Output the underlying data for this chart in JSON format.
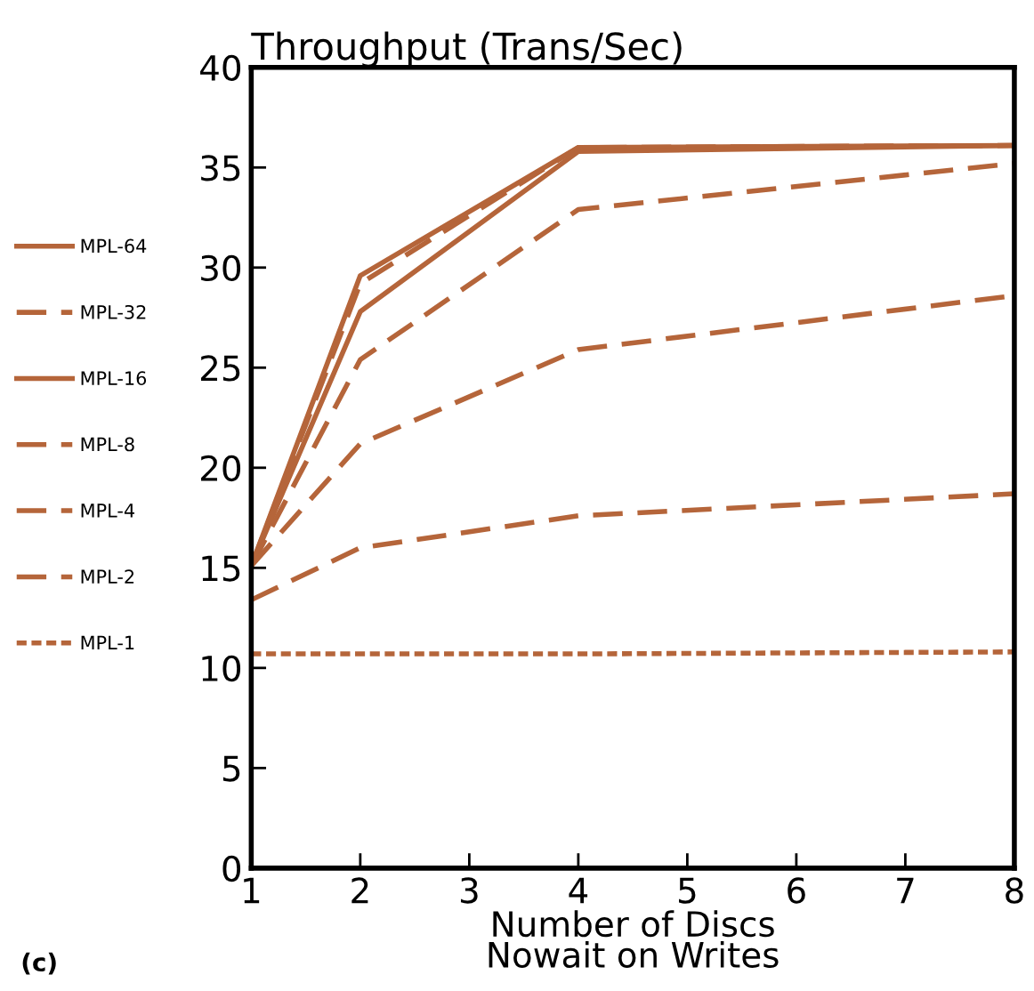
{
  "chart_data": {
    "type": "line",
    "title": "Throughput (Trans/Sec)",
    "xlabel": "Number of Discs\nNowait on Writes",
    "annotations": [
      "(c)"
    ],
    "x": [
      1,
      2,
      4,
      8
    ],
    "xlim": [
      1,
      8
    ],
    "xticks": [
      1,
      2,
      3,
      4,
      5,
      6,
      7,
      8
    ],
    "ylim": [
      0,
      40
    ],
    "yticks": [
      0,
      5,
      10,
      15,
      20,
      25,
      30,
      35,
      40
    ],
    "grid": false,
    "legend": "left",
    "marker": "none",
    "series": [
      {
        "name": "MPL-64",
        "color": "#b5653a",
        "line_style": "solid",
        "values": [
          15.1,
          29.6,
          36.0,
          36.1
        ]
      },
      {
        "name": "MPL-32",
        "color": "#b5653a",
        "line_style": "dashed",
        "values": [
          15.1,
          29.2,
          36.0,
          36.1
        ]
      },
      {
        "name": "MPL-16",
        "color": "#b5653a",
        "line_style": "solid",
        "values": [
          15.1,
          27.8,
          35.8,
          36.1
        ]
      },
      {
        "name": "MPL-8",
        "color": "#b5653a",
        "line_style": "dashed",
        "values": [
          15.1,
          25.4,
          32.9,
          35.2
        ]
      },
      {
        "name": "MPL-4",
        "color": "#b5653a",
        "line_style": "dashed",
        "values": [
          15.1,
          21.2,
          25.9,
          28.6
        ]
      },
      {
        "name": "MPL-2",
        "color": "#b5653a",
        "line_style": "dashed",
        "values": [
          13.4,
          16.0,
          17.6,
          18.7
        ]
      },
      {
        "name": "MPL-1",
        "color": "#b5653a",
        "line_style": "dotted",
        "values": [
          10.7,
          10.7,
          10.7,
          10.8
        ]
      }
    ]
  }
}
